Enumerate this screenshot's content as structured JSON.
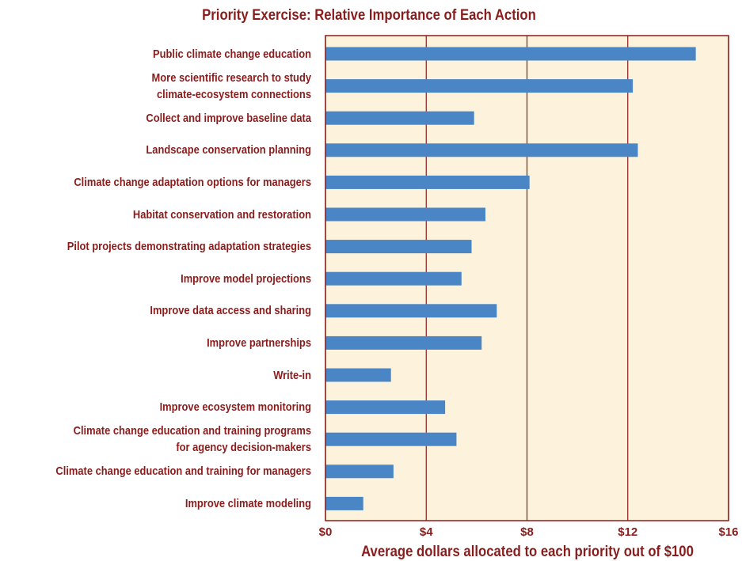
{
  "chart_data": {
    "type": "bar",
    "orientation": "horizontal",
    "title": "Priority Exercise: Relative Importance of Each Action",
    "x_label": "Average dollars allocated to each priority out of $100",
    "categories": [
      "Public climate change education",
      "More scientific research to study\nclimate-ecosystem connections",
      "Collect and improve baseline data",
      "Landscape conservation planning",
      "Climate change adaptation options for managers",
      "Habitat conservation and restoration",
      "Pilot projects demonstrating adaptation strategies",
      "Improve model projections",
      "Improve data access and sharing",
      "Improve partnerships",
      "Write-in",
      "Improve ecosystem monitoring",
      "Climate change education and training programs\nfor agency decision-makers",
      "Climate change education and training for managers",
      "Improve climate modeling"
    ],
    "values": [
      14.7,
      12.2,
      5.9,
      12.4,
      8.1,
      6.35,
      5.8,
      5.4,
      6.8,
      6.2,
      2.6,
      4.75,
      5.2,
      2.7,
      1.5
    ],
    "color": "#4a86c5",
    "xlim": [
      0,
      16
    ],
    "xticks": [
      {
        "value": 0,
        "label": "$0"
      },
      {
        "value": 4,
        "label": "$4"
      },
      {
        "value": 8,
        "label": "$8"
      },
      {
        "value": 12,
        "label": "$12"
      },
      {
        "value": 16,
        "label": "$16"
      }
    ],
    "grid": true
  }
}
